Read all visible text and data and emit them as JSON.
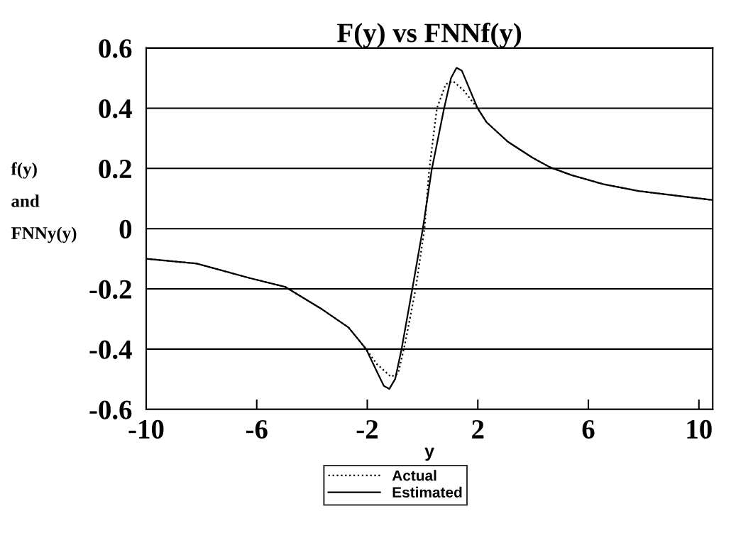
{
  "chart_data": {
    "type": "line",
    "title": "F(y) vs FNNf(y)",
    "xlabel": "y",
    "ylabel": "f(y)\nand\nFNNy(y)",
    "xlim": [
      -10,
      10.5
    ],
    "ylim": [
      -0.6,
      0.6
    ],
    "xticks": [
      -10,
      -6,
      -2,
      2,
      6,
      10
    ],
    "yticks": [
      -0.6,
      -0.4,
      -0.2,
      0,
      0.2,
      0.4,
      0.6
    ],
    "grid": "y",
    "legend": "bottom",
    "series": [
      {
        "name": "Actual",
        "color": "#000000",
        "line_style": "dotted",
        "x": [
          -10,
          -8.17,
          -6.26,
          -4.98,
          -3.7,
          -2.68,
          -2.04,
          -1.65,
          -1.14,
          -0.88,
          -0.63,
          -0.25,
          0.07,
          0.24,
          0.52,
          0.84,
          1.1,
          1.48,
          1.99,
          2.31,
          3.08,
          3.97,
          4.61,
          5.38,
          6.53,
          7.81,
          9.96,
          10.5
        ],
        "values": [
          -0.1,
          -0.116,
          -0.164,
          -0.193,
          -0.264,
          -0.328,
          -0.4,
          -0.45,
          -0.492,
          -0.48,
          -0.38,
          -0.2,
          0,
          0.195,
          0.4,
          0.48,
          0.49,
          0.46,
          0.4,
          0.354,
          0.289,
          0.236,
          0.204,
          0.178,
          0.148,
          0.125,
          0.101,
          0.095
        ]
      },
      {
        "name": "Estimated",
        "color": "#000000",
        "line_style": "solid",
        "x": [
          -10,
          -8.17,
          -6.26,
          -4.98,
          -3.7,
          -2.68,
          -2.04,
          -1.65,
          -1.4,
          -1.2,
          -0.99,
          -0.76,
          -0.37,
          0.01,
          0.33,
          0.78,
          1.03,
          1.23,
          1.42,
          1.99,
          2.31,
          3.08,
          3.97,
          4.61,
          5.38,
          6.53,
          7.81,
          9.96,
          10.5
        ],
        "values": [
          -0.1,
          -0.116,
          -0.164,
          -0.193,
          -0.264,
          -0.328,
          -0.4,
          -0.475,
          -0.522,
          -0.532,
          -0.499,
          -0.4,
          -0.2,
          0,
          0.195,
          0.4,
          0.5,
          0.534,
          0.525,
          0.4,
          0.354,
          0.289,
          0.236,
          0.204,
          0.178,
          0.148,
          0.125,
          0.101,
          0.095
        ]
      }
    ]
  }
}
